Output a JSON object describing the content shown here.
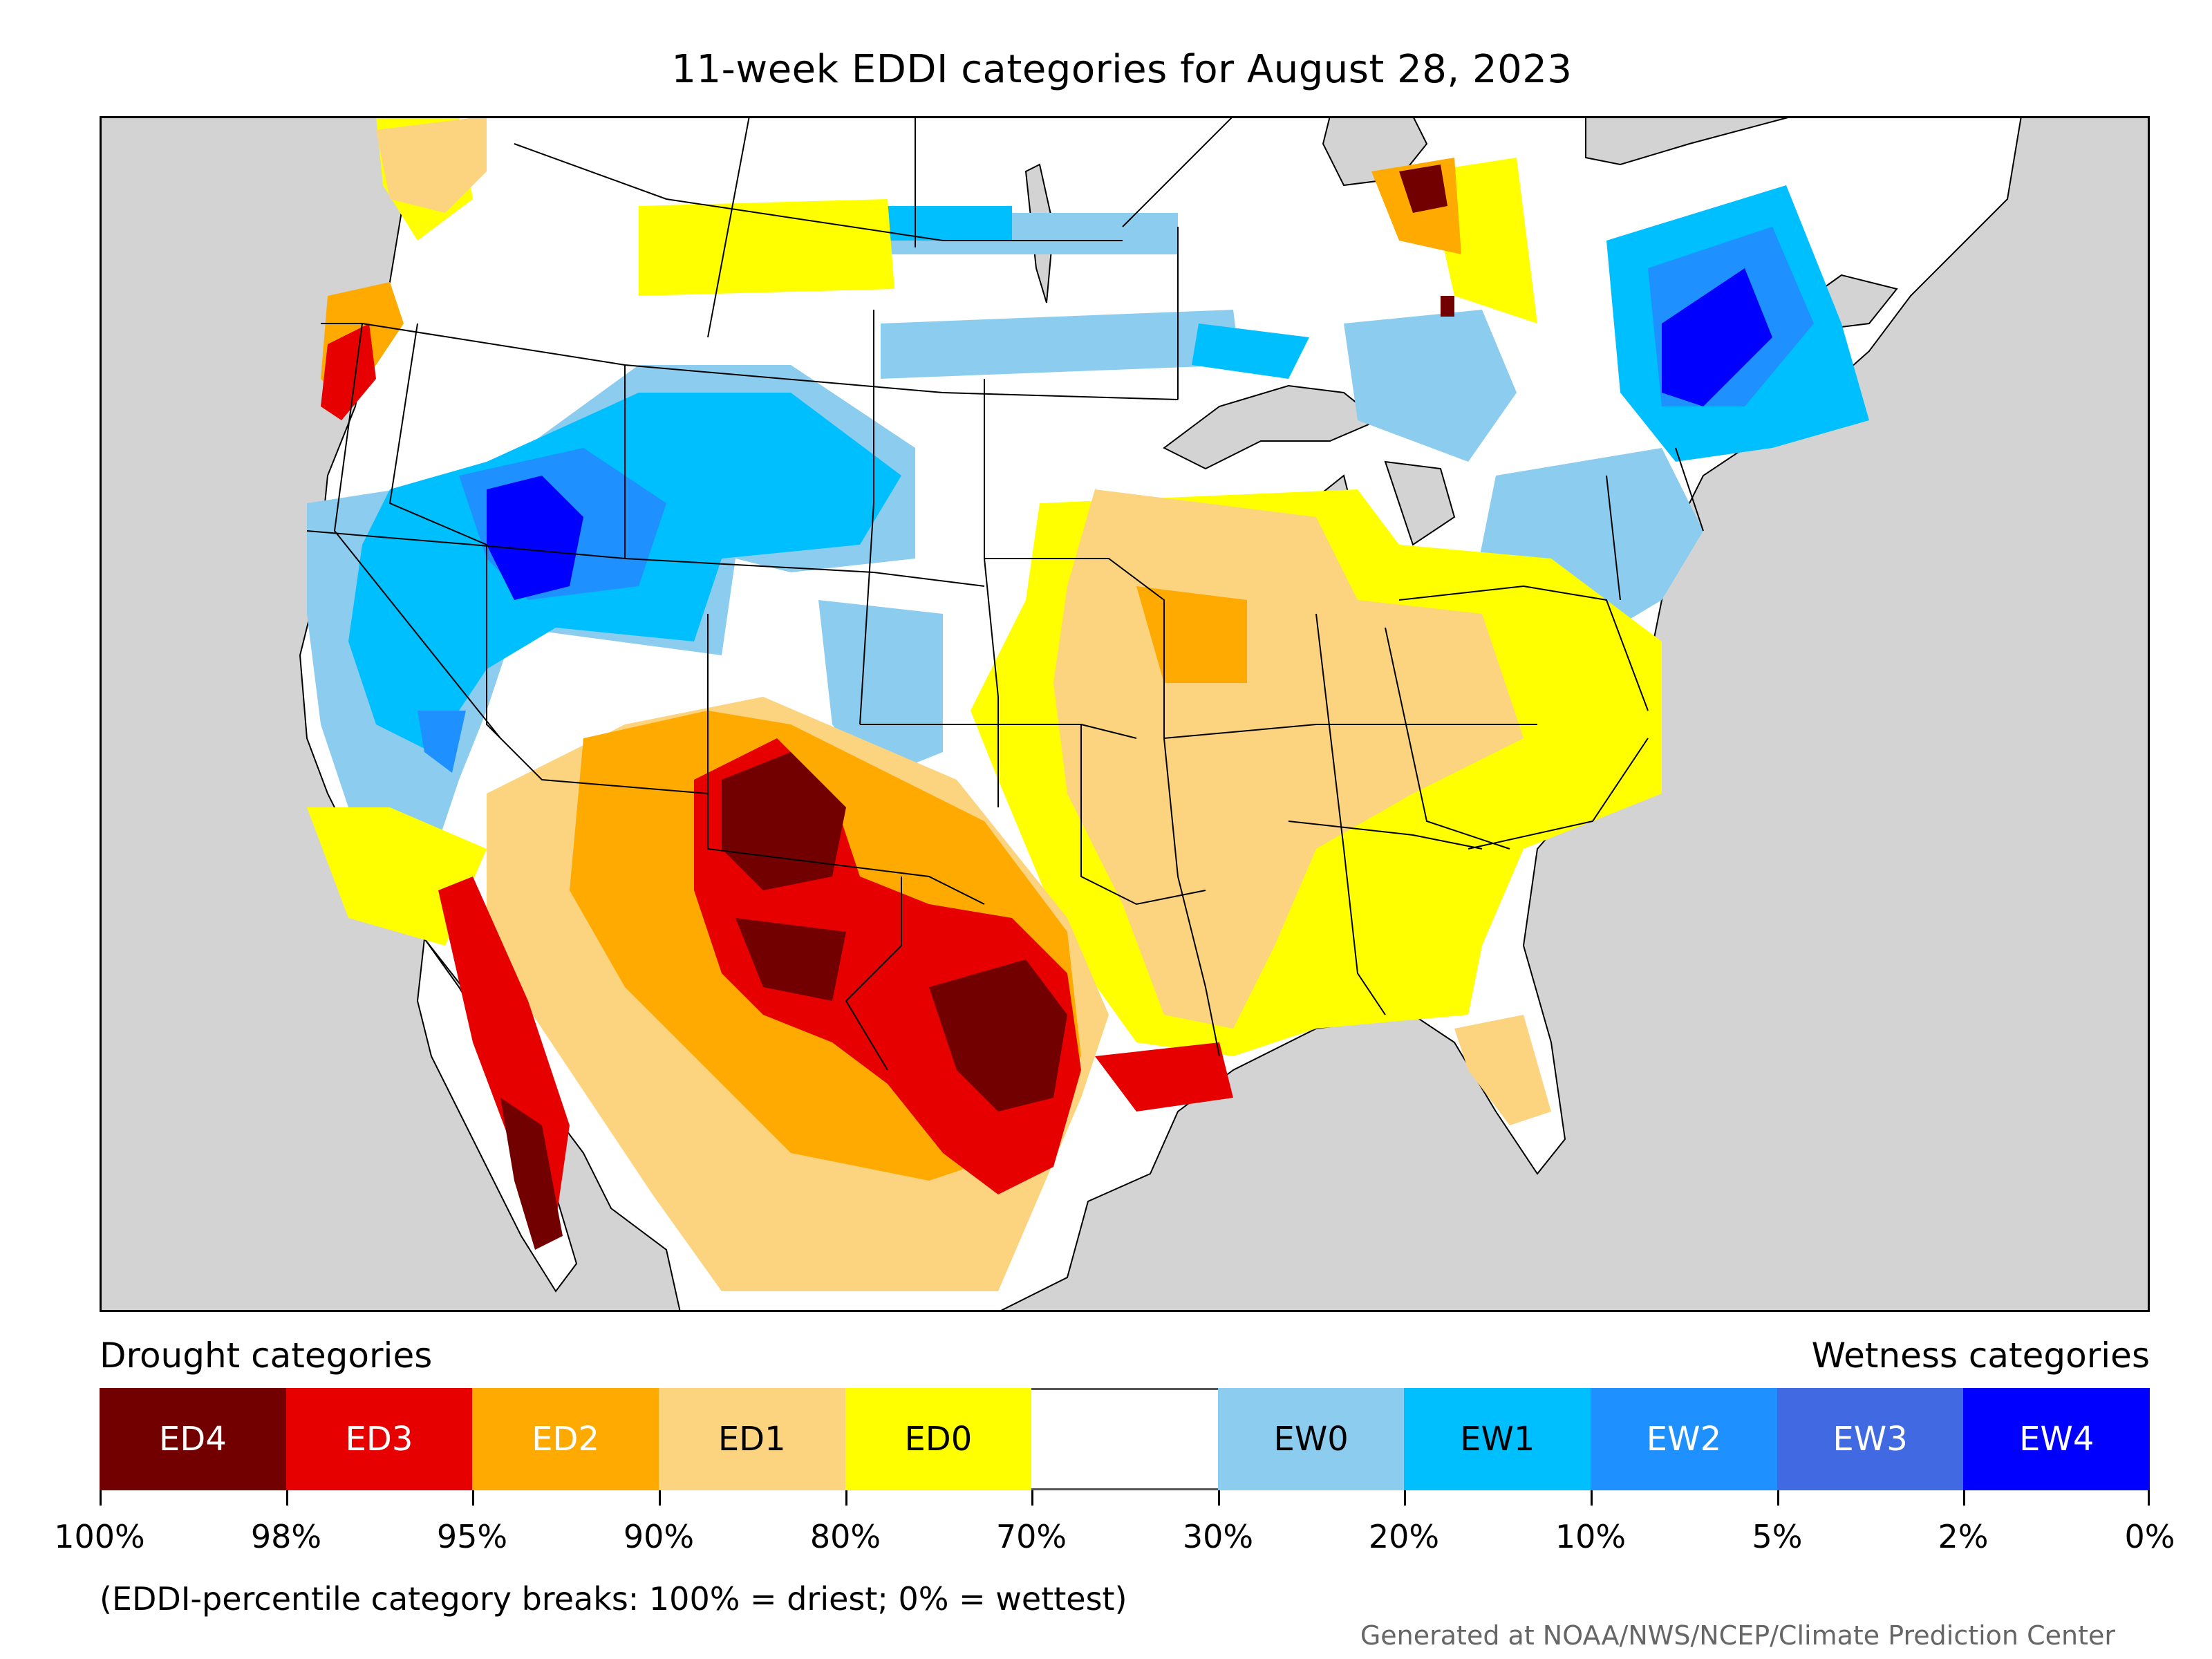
{
  "title": "11-week EDDI categories for August 28, 2023",
  "legend": {
    "left_heading": "Drought categories",
    "right_heading": "Wetness categories",
    "categories": [
      {
        "label": "ED4",
        "color": "#730000",
        "text_color": "#ffffff"
      },
      {
        "label": "ED3",
        "color": "#e60000",
        "text_color": "#ffffff"
      },
      {
        "label": "ED2",
        "color": "#ffaa00",
        "text_color": "#ffffff"
      },
      {
        "label": "ED1",
        "color": "#fcd37f",
        "text_color": "#000000"
      },
      {
        "label": "ED0",
        "color": "#ffff00",
        "text_color": "#000000"
      },
      {
        "label": "",
        "color": "#ffffff",
        "text_color": "#000000"
      },
      {
        "label": "EW0",
        "color": "#8ccdef",
        "text_color": "#000000"
      },
      {
        "label": "EW1",
        "color": "#00bfff",
        "text_color": "#000000"
      },
      {
        "label": "EW2",
        "color": "#1e90ff",
        "text_color": "#ffffff"
      },
      {
        "label": "EW3",
        "color": "#4169e1",
        "text_color": "#ffffff"
      },
      {
        "label": "EW4",
        "color": "#0000ff",
        "text_color": "#ffffff"
      }
    ],
    "breaks": [
      "100%",
      "98%",
      "95%",
      "90%",
      "80%",
      "70%",
      "30%",
      "20%",
      "10%",
      "5%",
      "2%",
      "0%"
    ]
  },
  "note": "(EDDI-percentile category breaks: 100% = driest; 0% = wettest)",
  "credit": "Generated at NOAA/NWS/NCEP/Climate Prediction Center",
  "colors": {
    "ocean": "#d3d3d3",
    "land": "#ffffff",
    "border": "#000000"
  }
}
